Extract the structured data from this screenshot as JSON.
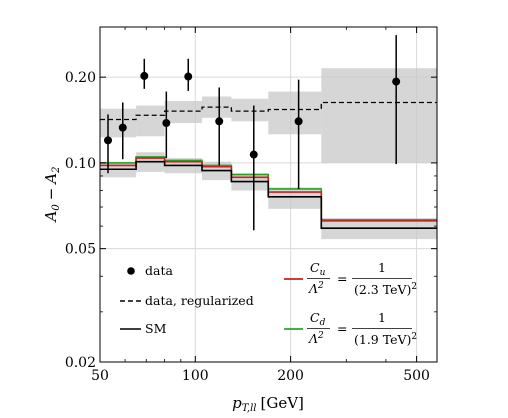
{
  "chart_data": {
    "type": "line",
    "xlabel": "p_{T,ll} [GeV]",
    "xlabel_main": "p",
    "xlabel_sub": "T,ll",
    "xlabel_unit": "[GeV]",
    "ylabel": "A_0 − A_2",
    "ylabel_main_a": "A",
    "ylabel_sub_a": "0",
    "ylabel_minus": "−",
    "ylabel_main_b": "A",
    "ylabel_sub_b": "2",
    "xscale": "log",
    "yscale": "log",
    "xlim": [
      50,
      580
    ],
    "ylim": [
      0.02,
      0.3
    ],
    "x_ticks": [
      {
        "value": 50,
        "label": "50"
      },
      {
        "value": 100,
        "label": "100"
      },
      {
        "value": 200,
        "label": "200"
      },
      {
        "value": 500,
        "label": "500"
      }
    ],
    "y_ticks": [
      {
        "value": 0.02,
        "label": "0.02"
      },
      {
        "value": 0.05,
        "label": "0.05"
      },
      {
        "value": 0.1,
        "label": "0.10"
      },
      {
        "value": 0.2,
        "label": "0.20"
      }
    ],
    "grid": true,
    "bin_edges": [
      50,
      65,
      80,
      105,
      130,
      170,
      250,
      580
    ],
    "data_points": [
      {
        "x": 53,
        "y": 0.12,
        "err_low": 0.092,
        "err_high": 0.148
      },
      {
        "x": 59,
        "y": 0.133,
        "err_low": 0.103,
        "err_high": 0.163
      },
      {
        "x": 69,
        "y": 0.202,
        "err_low": 0.182,
        "err_high": 0.232
      },
      {
        "x": 81,
        "y": 0.138,
        "err_low": 0.104,
        "err_high": 0.178
      },
      {
        "x": 95,
        "y": 0.201,
        "err_low": 0.179,
        "err_high": 0.232
      },
      {
        "x": 119,
        "y": 0.14,
        "err_low": 0.098,
        "err_high": 0.184
      },
      {
        "x": 153,
        "y": 0.107,
        "err_low": 0.058,
        "err_high": 0.159
      },
      {
        "x": 212,
        "y": 0.14,
        "err_low": 0.081,
        "err_high": 0.196
      },
      {
        "x": 431,
        "y": 0.193,
        "err_low": 0.099,
        "err_high": 0.281
      }
    ],
    "regularized": {
      "values": [
        0.142,
        0.147,
        0.152,
        0.157,
        0.152,
        0.154,
        0.163
      ],
      "band_low": [
        0.123,
        0.124,
        0.138,
        0.144,
        0.14,
        0.126,
        0.1
      ],
      "band_high": [
        0.155,
        0.159,
        0.165,
        0.171,
        0.168,
        0.178,
        0.215
      ]
    },
    "sm": {
      "values": [
        0.095,
        0.101,
        0.098,
        0.094,
        0.086,
        0.076,
        0.059
      ],
      "band_low": [
        0.089,
        0.093,
        0.092,
        0.087,
        0.08,
        0.069,
        0.054
      ],
      "band_high": [
        0.101,
        0.109,
        0.104,
        0.101,
        0.092,
        0.082,
        0.064
      ]
    },
    "cu": {
      "values": [
        0.098,
        0.104,
        0.101,
        0.097,
        0.089,
        0.079,
        0.063
      ]
    },
    "cd": {
      "values": [
        0.1,
        0.105,
        0.102,
        0.098,
        0.091,
        0.081,
        0.0625
      ]
    },
    "colors": {
      "cu": "#cc1f1f",
      "cd": "#27a427",
      "sm": "#000000",
      "data": "#000000",
      "regularized": "#000000",
      "band": "#c8c8c8"
    },
    "legend": {
      "placement": "bottom",
      "data_label": "data",
      "regularized_label": "data, regularized",
      "sm_label": "SM",
      "cu": {
        "lhs_num": "C",
        "lhs_num_sub": "u",
        "lhs_den": "Λ",
        "lhs_den_sup": "2",
        "eq": "=",
        "rhs_num": "1",
        "rhs_den": "(2.3 TeV)",
        "rhs_den_sup": "2"
      },
      "cd": {
        "lhs_num": "C",
        "lhs_num_sub": "d",
        "lhs_den": "Λ",
        "lhs_den_sup": "2",
        "eq": "=",
        "rhs_num": "1",
        "rhs_den": "(1.9 TeV)",
        "rhs_den_sup": "2"
      }
    }
  }
}
